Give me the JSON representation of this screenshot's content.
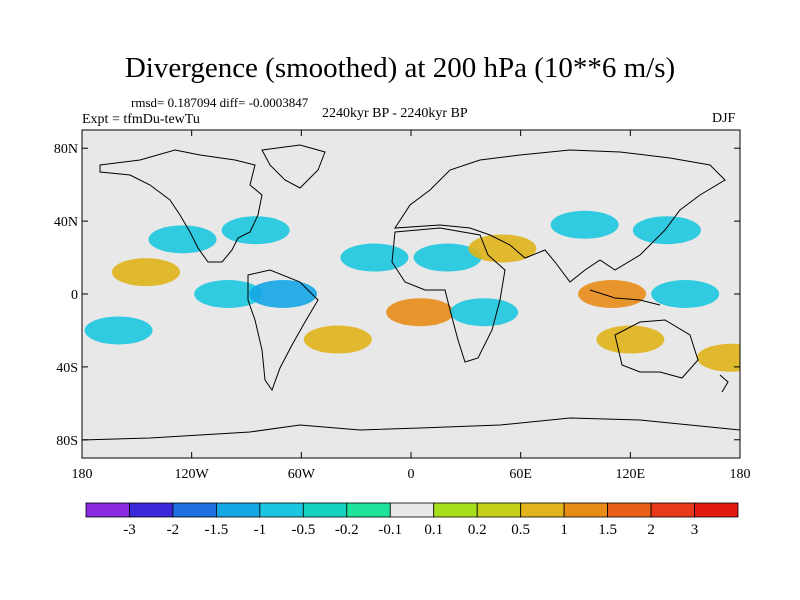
{
  "chart_data": {
    "type": "heatmap",
    "title": "Divergence (smoothed) at 200 hPa (10**6 m/s)",
    "stats_text": "rmsd= 0.187094 diff= -0.0003847",
    "period_text": "2240kyr BP - 2240kyr BP",
    "experiment_text": "Expt = tfmDu-tewTu",
    "season": "DJF",
    "x_axis": {
      "range": [
        -180,
        180
      ],
      "ticks": [
        -180,
        -120,
        -60,
        0,
        60,
        120,
        180
      ],
      "tick_labels": [
        "180",
        "120W",
        "60W",
        "0",
        "60E",
        "120E",
        "180"
      ]
    },
    "y_axis": {
      "range": [
        -90,
        90
      ],
      "ticks": [
        80,
        40,
        0,
        -40,
        -80
      ],
      "tick_labels": [
        "80N",
        "40N",
        "0",
        "40S",
        "80S"
      ]
    },
    "colorbar": {
      "labels": [
        "-3",
        "-2",
        "-1.5",
        "-1",
        "-0.5",
        "-0.2",
        "-0.1",
        "0.1",
        "0.2",
        "0.5",
        "1",
        "1.5",
        "2",
        "3"
      ],
      "colors": [
        "#8a2be2",
        "#3c28d8",
        "#1f6fe0",
        "#15a6e6",
        "#1cc6e0",
        "#14d4c0",
        "#1ee39a",
        "#e8e8e8",
        "#a6e01c",
        "#c6d01a",
        "#e0b41a",
        "#e88c18",
        "#e8601a",
        "#e83a1a",
        "#e01a10"
      ]
    },
    "fields": [
      {
        "lon": -125,
        "lat": 30,
        "level": "-0.5"
      },
      {
        "lon": -85,
        "lat": 35,
        "level": "-0.5"
      },
      {
        "lon": -145,
        "lat": 12,
        "level": "0.5"
      },
      {
        "lon": -100,
        "lat": 0,
        "level": "-0.5"
      },
      {
        "lon": -70,
        "lat": 0,
        "level": "-1"
      },
      {
        "lon": -20,
        "lat": 20,
        "level": "-0.5"
      },
      {
        "lon": 20,
        "lat": 20,
        "level": "-0.5"
      },
      {
        "lon": 50,
        "lat": 25,
        "level": "0.5"
      },
      {
        "lon": 95,
        "lat": 38,
        "level": "-0.5"
      },
      {
        "lon": 140,
        "lat": 35,
        "level": "-0.5"
      },
      {
        "lon": 110,
        "lat": 0,
        "level": "1"
      },
      {
        "lon": 150,
        "lat": 0,
        "level": "-0.5"
      },
      {
        "lon": 5,
        "lat": -10,
        "level": "1"
      },
      {
        "lon": -40,
        "lat": -25,
        "level": "0.5"
      },
      {
        "lon": 40,
        "lat": -10,
        "level": "-0.5"
      },
      {
        "lon": 120,
        "lat": -25,
        "level": "0.5"
      },
      {
        "lon": 175,
        "lat": -35,
        "level": "0.5"
      },
      {
        "lon": -160,
        "lat": -20,
        "level": "-0.5"
      }
    ]
  }
}
